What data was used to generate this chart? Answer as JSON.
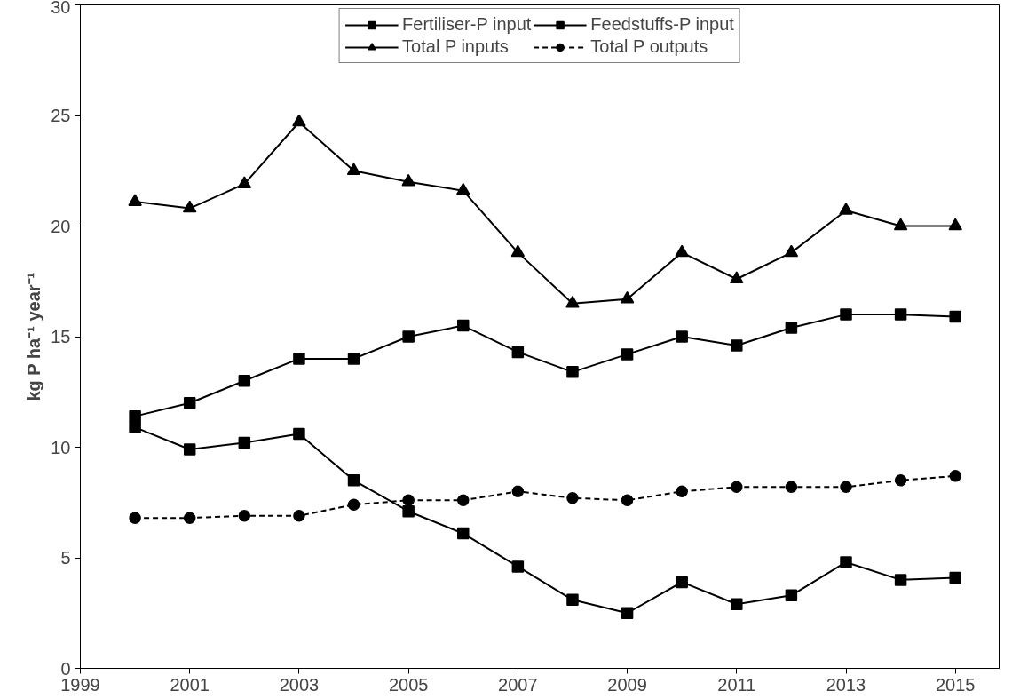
{
  "chart_data": {
    "type": "line",
    "ylabel": "kg P ha⁻¹ year⁻¹",
    "x": [
      2000,
      2001,
      2002,
      2003,
      2004,
      2005,
      2006,
      2007,
      2008,
      2009,
      2010,
      2011,
      2012,
      2013,
      2014,
      2015
    ],
    "series": [
      {
        "name": "Fertiliser-P input",
        "color": "#000000",
        "marker": "square",
        "line_style": "solid",
        "values": [
          10.9,
          9.9,
          10.2,
          10.6,
          8.5,
          7.1,
          6.1,
          4.6,
          3.1,
          2.5,
          3.9,
          2.9,
          3.3,
          4.8,
          4.0,
          4.1
        ]
      },
      {
        "name": "Feedstuffs-P input",
        "color": "#000000",
        "marker": "square",
        "line_style": "solid",
        "values": [
          11.4,
          12.0,
          13.0,
          14.0,
          14.0,
          15.0,
          15.5,
          14.3,
          13.4,
          14.2,
          15.0,
          14.6,
          15.4,
          16.0,
          16.0,
          15.9
        ]
      },
      {
        "name": "Total P inputs",
        "color": "#000000",
        "marker": "triangle",
        "line_style": "solid",
        "values": [
          21.1,
          20.8,
          21.9,
          24.7,
          22.5,
          22.0,
          21.6,
          18.8,
          16.5,
          16.7,
          18.8,
          17.6,
          18.8,
          20.7,
          20.0,
          20.0
        ]
      },
      {
        "name": "Total P outputs",
        "color": "#000000",
        "marker": "circle",
        "line_style": "dashed",
        "values": [
          6.8,
          6.8,
          6.9,
          6.9,
          7.4,
          7.6,
          7.6,
          8.0,
          7.7,
          7.6,
          8.0,
          8.2,
          8.2,
          8.2,
          8.5,
          8.7
        ]
      }
    ],
    "xlim": [
      1999,
      2015.8
    ],
    "xticks": [
      1999,
      2001,
      2003,
      2005,
      2007,
      2009,
      2011,
      2013,
      2015
    ],
    "ylim": [
      0,
      30
    ],
    "yticks": [
      0,
      5,
      10,
      15,
      20,
      25,
      30
    ],
    "grid": false,
    "legend": "top"
  }
}
